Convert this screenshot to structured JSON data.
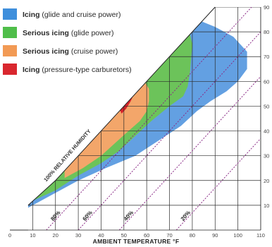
{
  "chart_data": {
    "type": "area",
    "xlabel": "AMBIENT TEMPERATURE  °F",
    "x_ticks": [
      0,
      10,
      20,
      30,
      40,
      50,
      60,
      70,
      80,
      90,
      100,
      110
    ],
    "y_ticks": [
      10,
      20,
      30,
      40,
      50,
      60,
      70,
      80,
      90
    ],
    "xlim": [
      0,
      110
    ],
    "ylim": [
      0,
      90
    ],
    "saturation_label": "100% RELATIVE HUMIDITY",
    "humidity_lines": [
      {
        "label": "80%",
        "factor": 0.8
      },
      {
        "label": "60%",
        "factor": 0.6
      },
      {
        "label": "40%",
        "factor": 0.4
      },
      {
        "label": "20%",
        "factor": 0.2
      }
    ],
    "legend": [
      {
        "bold": "Icing",
        "rest": "(glide and cruise power)",
        "color": "#3f8fdc"
      },
      {
        "bold": "Serious icing",
        "rest": "(glide power)",
        "color": "#4fbe4a"
      },
      {
        "bold": "Serious icing",
        "rest": "(cruise power)",
        "color": "#f29a54"
      },
      {
        "bold": "Icing",
        "rest": "(pressure-type carburetors)",
        "color": "#d9272e"
      }
    ],
    "regions": [
      {
        "name": "Icing (glide and cruise power)",
        "color": "#5b9be0",
        "points": [
          [
            8,
            9
          ],
          [
            30,
            20
          ],
          [
            42,
            25
          ],
          [
            55,
            30
          ],
          [
            65,
            36
          ],
          [
            75,
            42
          ],
          [
            82,
            48
          ],
          [
            88,
            52
          ],
          [
            95,
            56
          ],
          [
            100,
            60
          ],
          [
            104,
            65
          ],
          [
            104,
            72
          ],
          [
            98,
            78
          ],
          [
            90,
            82
          ],
          [
            82,
            85
          ],
          [
            80,
            86
          ],
          [
            8,
            11
          ]
        ]
      },
      {
        "name": "Serious icing (glide power)",
        "color": "#6cc35a",
        "points": [
          [
            8,
            11
          ],
          [
            20,
            16
          ],
          [
            30,
            22
          ],
          [
            40,
            27
          ],
          [
            48,
            32
          ],
          [
            55,
            38
          ],
          [
            62,
            44
          ],
          [
            70,
            50
          ],
          [
            76,
            54
          ],
          [
            78,
            58
          ],
          [
            79,
            64
          ],
          [
            80,
            75
          ],
          [
            78,
            83
          ],
          [
            77,
            85
          ],
          [
            8,
            12
          ]
        ]
      },
      {
        "name": "Serious icing (cruise power)",
        "color": "#f3a66a",
        "points": [
          [
            24,
            21
          ],
          [
            32,
            25
          ],
          [
            40,
            30
          ],
          [
            46,
            35
          ],
          [
            52,
            40
          ],
          [
            57,
            44
          ],
          [
            60,
            48
          ],
          [
            61,
            52
          ],
          [
            61,
            57
          ],
          [
            59,
            60
          ],
          [
            24,
            28
          ]
        ]
      },
      {
        "name": "Icing (pressure-type carburetors)",
        "color": "#d6232a",
        "points": [
          [
            49,
            47
          ],
          [
            51,
            49
          ],
          [
            53,
            52
          ],
          [
            55,
            56
          ],
          [
            54,
            57
          ],
          [
            52,
            55
          ],
          [
            50,
            52
          ],
          [
            48,
            49
          ]
        ]
      }
    ]
  }
}
